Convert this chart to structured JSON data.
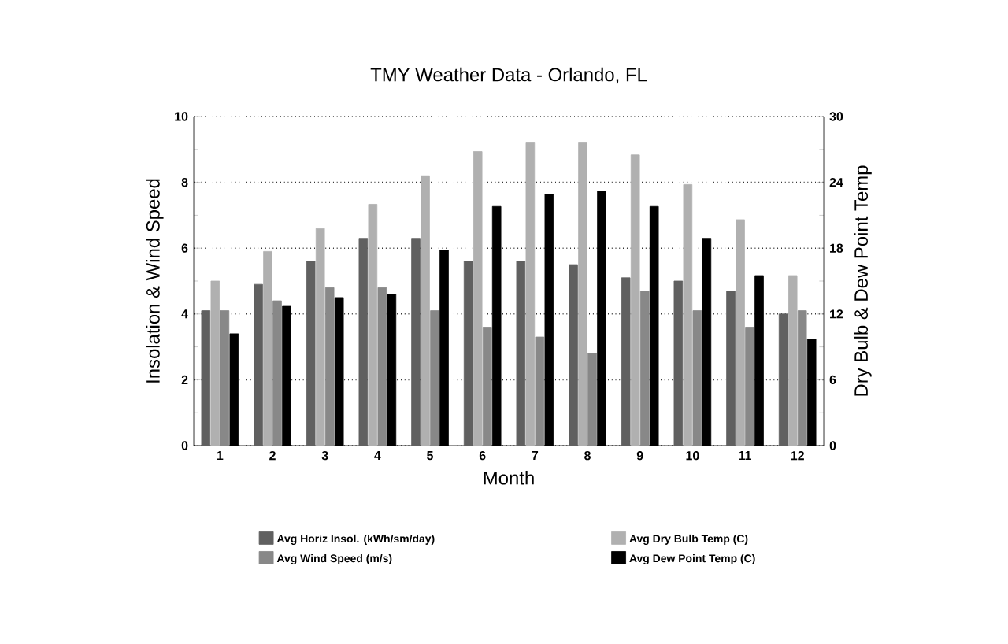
{
  "chart_data": {
    "type": "bar",
    "title": "TMY Weather Data - Orlando, FL",
    "xlabel": "Month",
    "ylabel": "Insolation & Wind Speed",
    "y2label": "Dry Bulb & Dew Point Temp",
    "categories": [
      "1",
      "2",
      "3",
      "4",
      "5",
      "6",
      "7",
      "8",
      "9",
      "10",
      "11",
      "12"
    ],
    "series": [
      {
        "name": "Avg Horiz Insol. (kWh/sm/day)",
        "color": "#606060",
        "values": [
          4.1,
          4.9,
          5.6,
          6.3,
          6.3,
          5.6,
          5.6,
          5.5,
          5.1,
          5.0,
          4.7,
          4.0
        ]
      },
      {
        "name": "Avg Dry Bulb Temp (C)",
        "color": "#b0b0b0",
        "axis": "y2",
        "values": [
          15,
          17.7,
          19.8,
          22,
          24.6,
          26.8,
          27.6,
          27.6,
          26.5,
          23.8,
          20.6,
          15.5
        ]
      },
      {
        "name": "Avg Wind Speed (m/s)",
        "color": "#888888",
        "values": [
          4.1,
          4.4,
          4.8,
          4.8,
          4.1,
          3.6,
          3.3,
          2.8,
          4.7,
          4.1,
          3.6,
          4.1
        ]
      },
      {
        "name": "Avg Dew Point Temp (C)",
        "color": "#000000",
        "axis": "y2",
        "values": [
          10.2,
          12.7,
          13.5,
          13.8,
          17.8,
          21.8,
          22.9,
          23.2,
          21.8,
          18.9,
          15.5,
          9.7
        ]
      }
    ],
    "ylim": [
      0,
      10
    ],
    "yticks": [
      0,
      2,
      4,
      6,
      8,
      10
    ],
    "y2lim": [
      0,
      30
    ],
    "y2ticks": [
      0,
      6,
      12,
      18,
      24,
      30
    ],
    "grid": "y",
    "legend": "bottom"
  }
}
